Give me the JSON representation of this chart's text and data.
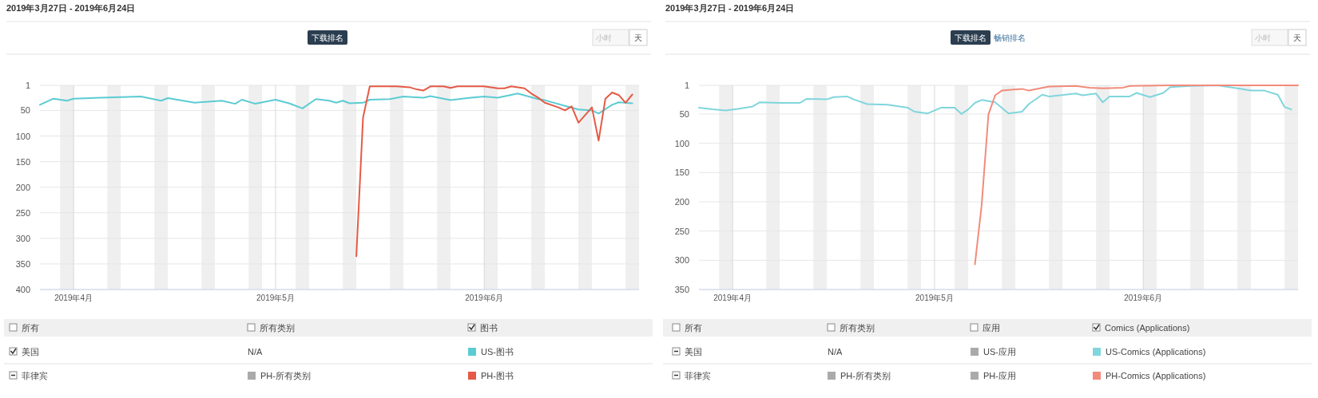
{
  "chart_data": [
    {
      "type": "line",
      "title": "2019年3月27日 - 2019年6月24日",
      "xlim": [
        "2019-03-27",
        "2019-06-24"
      ],
      "ylim": [
        400,
        1
      ],
      "yticks": [
        1,
        50,
        100,
        150,
        200,
        250,
        300,
        350,
        400
      ],
      "xticks": [
        {
          "value": "2019-04-01",
          "label": "2019年4月"
        },
        {
          "value": "2019-05-01",
          "label": "2019年5月"
        },
        {
          "value": "2019-06-01",
          "label": "2019年6月"
        }
      ],
      "grid": true,
      "legend": "bottom",
      "bands": [
        {
          "axis": "x",
          "from": "2019-03-30",
          "to": "2019-04-01",
          "color": "#efefef"
        },
        {
          "axis": "x",
          "from": "2019-04-06",
          "to": "2019-04-08",
          "color": "#efefef"
        },
        {
          "axis": "x",
          "from": "2019-04-13",
          "to": "2019-04-15",
          "color": "#efefef"
        },
        {
          "axis": "x",
          "from": "2019-04-20",
          "to": "2019-04-22",
          "color": "#efefef"
        },
        {
          "axis": "x",
          "from": "2019-04-27",
          "to": "2019-04-29",
          "color": "#efefef"
        },
        {
          "axis": "x",
          "from": "2019-05-04",
          "to": "2019-05-06",
          "color": "#efefef"
        },
        {
          "axis": "x",
          "from": "2019-05-11",
          "to": "2019-05-13",
          "color": "#efefef"
        },
        {
          "axis": "x",
          "from": "2019-05-18",
          "to": "2019-05-20",
          "color": "#efefef"
        },
        {
          "axis": "x",
          "from": "2019-05-25",
          "to": "2019-05-27",
          "color": "#efefef"
        },
        {
          "axis": "x",
          "from": "2019-06-01",
          "to": "2019-06-03",
          "color": "#efefef"
        },
        {
          "axis": "x",
          "from": "2019-06-08",
          "to": "2019-06-10",
          "color": "#efefef"
        },
        {
          "axis": "x",
          "from": "2019-06-15",
          "to": "2019-06-17",
          "color": "#efefef"
        },
        {
          "axis": "x",
          "from": "2019-06-22",
          "to": "2019-06-24",
          "color": "#efefef"
        }
      ],
      "annotations": [
        "下载排名",
        "小时",
        "天",
        "所有",
        "所有类别",
        "图书",
        "美国",
        "N/A",
        "菲律宾",
        "PH-所有类别"
      ],
      "series": [
        {
          "name": "US-图书",
          "color": "#5ccbd3",
          "x": [
            "2019-03-27",
            "2019-03-29",
            "2019-03-31",
            "2019-04-01",
            "2019-04-05",
            "2019-04-11",
            "2019-04-14",
            "2019-04-15",
            "2019-04-19",
            "2019-04-23",
            "2019-04-25",
            "2019-04-26",
            "2019-04-28",
            "2019-05-01",
            "2019-05-03",
            "2019-05-05",
            "2019-05-07",
            "2019-05-09",
            "2019-05-10",
            "2019-05-11",
            "2019-05-12",
            "2019-05-14",
            "2019-05-15",
            "2019-05-18",
            "2019-05-20",
            "2019-05-23",
            "2019-05-24",
            "2019-05-27",
            "2019-05-30",
            "2019-06-01",
            "2019-06-03",
            "2019-06-06",
            "2019-06-09",
            "2019-06-10",
            "2019-06-13",
            "2019-06-15",
            "2019-06-17",
            "2019-06-18",
            "2019-06-20",
            "2019-06-21",
            "2019-06-23"
          ],
          "values": [
            39,
            27,
            31,
            27,
            25,
            23,
            31,
            26,
            35,
            31,
            37,
            29,
            37,
            29,
            36,
            46,
            28,
            31,
            35,
            31,
            36,
            35,
            29,
            28,
            23,
            25,
            22,
            30,
            25,
            23,
            25,
            17,
            28,
            30,
            41,
            48,
            50,
            56,
            39,
            34,
            36
          ]
        },
        {
          "name": "PH-图书",
          "color": "#e55a45",
          "x": [
            "2019-05-13",
            "2019-05-14",
            "2019-05-15",
            "2019-05-19",
            "2019-05-21",
            "2019-05-22",
            "2019-05-23",
            "2019-05-24",
            "2019-05-26",
            "2019-05-27",
            "2019-05-28",
            "2019-06-01",
            "2019-06-03",
            "2019-06-04",
            "2019-06-05",
            "2019-06-07",
            "2019-06-08",
            "2019-06-09",
            "2019-06-10",
            "2019-06-12",
            "2019-06-13",
            "2019-06-14",
            "2019-06-15",
            "2019-06-17",
            "2019-06-18",
            "2019-06-19",
            "2019-06-20",
            "2019-06-21",
            "2019-06-22",
            "2019-06-23"
          ],
          "values": [
            335,
            64,
            3,
            3,
            5,
            9,
            11,
            3,
            3,
            6,
            3,
            3,
            7,
            7,
            3,
            7,
            17,
            25,
            35,
            44,
            50,
            42,
            74,
            44,
            109,
            27,
            15,
            20,
            35,
            19
          ]
        }
      ]
    },
    {
      "type": "line",
      "title": "2019年3月27日 - 2019年6月24日",
      "xlim": [
        "2019-03-27",
        "2019-06-24"
      ],
      "ylim": [
        350,
        1
      ],
      "yticks": [
        1,
        50,
        100,
        150,
        200,
        250,
        300,
        350
      ],
      "xticks": [
        {
          "value": "2019-04-01",
          "label": "2019年4月"
        },
        {
          "value": "2019-05-01",
          "label": "2019年5月"
        },
        {
          "value": "2019-06-01",
          "label": "2019年6月"
        }
      ],
      "grid": true,
      "legend": "bottom",
      "bands": [
        {
          "axis": "x",
          "from": "2019-03-30",
          "to": "2019-04-01",
          "color": "#efefef"
        },
        {
          "axis": "x",
          "from": "2019-04-06",
          "to": "2019-04-08",
          "color": "#efefef"
        },
        {
          "axis": "x",
          "from": "2019-04-13",
          "to": "2019-04-15",
          "color": "#efefef"
        },
        {
          "axis": "x",
          "from": "2019-04-20",
          "to": "2019-04-22",
          "color": "#efefef"
        },
        {
          "axis": "x",
          "from": "2019-04-27",
          "to": "2019-04-29",
          "color": "#efefef"
        },
        {
          "axis": "x",
          "from": "2019-05-04",
          "to": "2019-05-06",
          "color": "#efefef"
        },
        {
          "axis": "x",
          "from": "2019-05-11",
          "to": "2019-05-13",
          "color": "#efefef"
        },
        {
          "axis": "x",
          "from": "2019-05-18",
          "to": "2019-05-20",
          "color": "#efefef"
        },
        {
          "axis": "x",
          "from": "2019-05-25",
          "to": "2019-05-27",
          "color": "#efefef"
        },
        {
          "axis": "x",
          "from": "2019-06-01",
          "to": "2019-06-03",
          "color": "#efefef"
        },
        {
          "axis": "x",
          "from": "2019-06-08",
          "to": "2019-06-10",
          "color": "#efefef"
        },
        {
          "axis": "x",
          "from": "2019-06-15",
          "to": "2019-06-17",
          "color": "#efefef"
        },
        {
          "axis": "x",
          "from": "2019-06-22",
          "to": "2019-06-24",
          "color": "#efefef"
        }
      ],
      "annotations": [
        "下载排名",
        "畅销排名",
        "小时",
        "天",
        "所有",
        "所有类别",
        "应用",
        "Comics (Applications)",
        "美国",
        "N/A",
        "US-应用",
        "菲律宾",
        "PH-所有类别",
        "PH-应用"
      ],
      "series": [
        {
          "name": "US-Comics (Applications)",
          "color": "#80d6dc",
          "x": [
            "2019-03-27",
            "2019-03-29",
            "2019-03-31",
            "2019-04-02",
            "2019-04-04",
            "2019-04-05",
            "2019-04-08",
            "2019-04-11",
            "2019-04-12",
            "2019-04-15",
            "2019-04-16",
            "2019-04-18",
            "2019-04-19",
            "2019-04-21",
            "2019-04-24",
            "2019-04-27",
            "2019-04-28",
            "2019-04-30",
            "2019-05-02",
            "2019-05-04",
            "2019-05-05",
            "2019-05-06",
            "2019-05-07",
            "2019-05-08",
            "2019-05-10",
            "2019-05-12",
            "2019-05-14",
            "2019-05-15",
            "2019-05-17",
            "2019-05-18",
            "2019-05-22",
            "2019-05-23",
            "2019-05-25",
            "2019-05-26",
            "2019-05-27",
            "2019-05-30",
            "2019-05-31",
            "2019-06-02",
            "2019-06-04",
            "2019-06-05",
            "2019-06-08",
            "2019-06-12",
            "2019-06-15",
            "2019-06-17",
            "2019-06-19",
            "2019-06-21",
            "2019-06-22",
            "2019-06-23"
          ],
          "values": [
            39,
            42,
            44,
            41,
            37,
            30,
            31,
            31,
            24,
            25,
            21,
            20,
            25,
            33,
            34,
            39,
            46,
            49,
            39,
            39,
            50,
            42,
            31,
            26,
            30,
            49,
            46,
            33,
            17,
            20,
            15,
            18,
            15,
            30,
            20,
            20,
            14,
            21,
            14,
            4,
            2,
            1,
            6,
            10,
            10,
            17,
            38,
            42
          ]
        },
        {
          "name": "PH-Comics (Applications)",
          "color": "#f28b7b",
          "x": [
            "2019-05-07",
            "2019-05-08",
            "2019-05-09",
            "2019-05-10",
            "2019-05-11",
            "2019-05-14",
            "2019-05-15",
            "2019-05-18",
            "2019-05-22",
            "2019-05-24",
            "2019-05-26",
            "2019-05-29",
            "2019-05-30",
            "2019-06-05",
            "2019-06-24"
          ],
          "values": [
            307,
            206,
            51,
            18,
            10,
            7,
            10,
            3,
            2,
            5,
            6,
            5,
            2,
            1,
            1
          ]
        }
      ]
    }
  ]
}
